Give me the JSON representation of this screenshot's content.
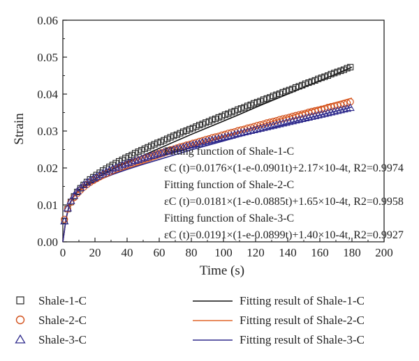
{
  "chart_data": {
    "type": "scatter",
    "xlabel": "Time (s)",
    "ylabel": "Strain",
    "xlim": [
      0,
      200
    ],
    "ylim": [
      0,
      0.06
    ],
    "xticks": [
      0,
      20,
      40,
      60,
      80,
      100,
      120,
      140,
      160,
      180,
      200
    ],
    "yticks": [
      0.0,
      0.01,
      0.02,
      0.03,
      0.04,
      0.05,
      0.06
    ],
    "xtick_labels": [
      "0",
      "20",
      "40",
      "60",
      "80",
      "100",
      "120",
      "140",
      "160",
      "180",
      "200"
    ],
    "ytick_labels": [
      "0.00",
      "0.01",
      "0.02",
      "0.03",
      "0.04",
      "0.05",
      "0.06"
    ],
    "grid": false,
    "legend_position": "bottom",
    "series": [
      {
        "name": "Shale-1-C",
        "marker": "square",
        "color": "#222222",
        "x": [
          1,
          3,
          5,
          7,
          9,
          11,
          13,
          15,
          17,
          19,
          21,
          23,
          25,
          27,
          29,
          31,
          33,
          35,
          37,
          39,
          41,
          43,
          45,
          47,
          49,
          51,
          53,
          55,
          57,
          59,
          61,
          63,
          65,
          67,
          69,
          71,
          73,
          75,
          77,
          79,
          81,
          83,
          85,
          87,
          89,
          91,
          93,
          95,
          97,
          99,
          101,
          103,
          105,
          107,
          109,
          111,
          113,
          115,
          117,
          119,
          121,
          123,
          125,
          127,
          129,
          131,
          133,
          135,
          137,
          139,
          141,
          143,
          145,
          147,
          149,
          151,
          153,
          155,
          157,
          159,
          161,
          163,
          165,
          167,
          169,
          171,
          173,
          175,
          177,
          179
        ],
        "values": [
          0.0056,
          0.0089,
          0.0108,
          0.0123,
          0.0135,
          0.0145,
          0.0154,
          0.0162,
          0.0169,
          0.0175,
          0.0181,
          0.0187,
          0.0193,
          0.0198,
          0.0203,
          0.0208,
          0.0213,
          0.0218,
          0.0222,
          0.0227,
          0.0231,
          0.0235,
          0.024,
          0.0244,
          0.0248,
          0.0252,
          0.0256,
          0.026,
          0.0264,
          0.0268,
          0.0271,
          0.0275,
          0.0279,
          0.0283,
          0.0287,
          0.029,
          0.0294,
          0.0298,
          0.0301,
          0.0305,
          0.0308,
          0.0312,
          0.0316,
          0.0319,
          0.0323,
          0.0326,
          0.033,
          0.0333,
          0.0337,
          0.034,
          0.0344,
          0.0347,
          0.0351,
          0.0354,
          0.0358,
          0.0361,
          0.0364,
          0.0368,
          0.0371,
          0.0375,
          0.0378,
          0.0381,
          0.0385,
          0.0388,
          0.0391,
          0.0395,
          0.0398,
          0.0401,
          0.0405,
          0.0408,
          0.0411,
          0.0414,
          0.0418,
          0.0421,
          0.0424,
          0.0428,
          0.0431,
          0.0434,
          0.0437,
          0.0441,
          0.0444,
          0.0447,
          0.045,
          0.0454,
          0.0457,
          0.046,
          0.0463,
          0.0466,
          0.047,
          0.0473
        ]
      },
      {
        "name": "Shale-2-C",
        "marker": "circle",
        "color": "#d2511c",
        "x": [
          1,
          3,
          5,
          7,
          9,
          11,
          13,
          15,
          17,
          19,
          21,
          23,
          25,
          27,
          29,
          31,
          33,
          35,
          37,
          39,
          41,
          43,
          45,
          47,
          49,
          51,
          53,
          55,
          57,
          59,
          61,
          63,
          65,
          67,
          69,
          71,
          73,
          75,
          77,
          79,
          81,
          83,
          85,
          87,
          89,
          91,
          93,
          95,
          97,
          99,
          101,
          103,
          105,
          107,
          109,
          111,
          113,
          115,
          117,
          119,
          121,
          123,
          125,
          127,
          129,
          131,
          133,
          135,
          137,
          139,
          141,
          143,
          145,
          147,
          149,
          151,
          153,
          155,
          157,
          159,
          161,
          163,
          165,
          167,
          169,
          171,
          173,
          175,
          177,
          179
        ],
        "values": [
          0.0061,
          0.0089,
          0.0107,
          0.012,
          0.0131,
          0.014,
          0.0148,
          0.0155,
          0.0161,
          0.0166,
          0.0171,
          0.0176,
          0.0181,
          0.0185,
          0.0189,
          0.0193,
          0.0197,
          0.02,
          0.0204,
          0.0207,
          0.0211,
          0.0214,
          0.0217,
          0.022,
          0.0223,
          0.0226,
          0.0229,
          0.0232,
          0.0235,
          0.0238,
          0.0241,
          0.0243,
          0.0246,
          0.0249,
          0.0251,
          0.0254,
          0.0257,
          0.0259,
          0.0262,
          0.0264,
          0.0267,
          0.0269,
          0.0272,
          0.0274,
          0.0277,
          0.0279,
          0.0282,
          0.0284,
          0.0286,
          0.0289,
          0.0291,
          0.0294,
          0.0296,
          0.0298,
          0.0301,
          0.0303,
          0.0305,
          0.0308,
          0.031,
          0.0312,
          0.0315,
          0.0317,
          0.0319,
          0.0322,
          0.0324,
          0.0326,
          0.0328,
          0.0331,
          0.0333,
          0.0335,
          0.0337,
          0.034,
          0.0342,
          0.0344,
          0.0346,
          0.0348,
          0.0351,
          0.0353,
          0.0355,
          0.0357,
          0.0359,
          0.0361,
          0.0364,
          0.0366,
          0.0368,
          0.037,
          0.0372,
          0.0374,
          0.0376,
          0.0379
        ]
      },
      {
        "name": "Shale-3-C",
        "marker": "triangle",
        "color": "#2e2a8c",
        "x": [
          1,
          3,
          5,
          7,
          9,
          11,
          13,
          15,
          17,
          19,
          21,
          23,
          25,
          27,
          29,
          31,
          33,
          35,
          37,
          39,
          41,
          43,
          45,
          47,
          49,
          51,
          53,
          55,
          57,
          59,
          61,
          63,
          65,
          67,
          69,
          71,
          73,
          75,
          77,
          79,
          81,
          83,
          85,
          87,
          89,
          91,
          93,
          95,
          97,
          99,
          101,
          103,
          105,
          107,
          109,
          111,
          113,
          115,
          117,
          119,
          121,
          123,
          125,
          127,
          129,
          131,
          133,
          135,
          137,
          139,
          141,
          143,
          145,
          147,
          149,
          151,
          153,
          155,
          157,
          159,
          161,
          163,
          165,
          167,
          169,
          171,
          173,
          175,
          177,
          179
        ],
        "values": [
          0.0056,
          0.0091,
          0.0111,
          0.0125,
          0.0137,
          0.0146,
          0.0154,
          0.0161,
          0.0167,
          0.0172,
          0.0177,
          0.0182,
          0.0186,
          0.019,
          0.0194,
          0.0198,
          0.0201,
          0.0204,
          0.0208,
          0.0211,
          0.0214,
          0.0217,
          0.022,
          0.0222,
          0.0225,
          0.0228,
          0.023,
          0.0233,
          0.0235,
          0.0238,
          0.024,
          0.0243,
          0.0245,
          0.0247,
          0.025,
          0.0252,
          0.0254,
          0.0256,
          0.0259,
          0.0261,
          0.0263,
          0.0265,
          0.0267,
          0.027,
          0.0272,
          0.0274,
          0.0276,
          0.0278,
          0.028,
          0.0282,
          0.0284,
          0.0286,
          0.0288,
          0.0291,
          0.0293,
          0.0295,
          0.0297,
          0.0299,
          0.0301,
          0.0303,
          0.0305,
          0.0307,
          0.0309,
          0.0311,
          0.0313,
          0.0315,
          0.0317,
          0.0319,
          0.0321,
          0.0323,
          0.0325,
          0.0327,
          0.0329,
          0.0331,
          0.0333,
          0.0335,
          0.0337,
          0.0339,
          0.0341,
          0.0343,
          0.0345,
          0.0347,
          0.0349,
          0.0351,
          0.0353,
          0.0355,
          0.0357,
          0.0359,
          0.0361,
          0.0363
        ]
      },
      {
        "name": "Fitting result of Shale-1-C",
        "line": true,
        "color": "#111111",
        "x": [
          0,
          2,
          4,
          6,
          8,
          10,
          14,
          18,
          24,
          30,
          40,
          50,
          60,
          70,
          80,
          90,
          100,
          110,
          120,
          130,
          140,
          150,
          160,
          170,
          180
        ],
        "values": [
          0.0,
          0.0062,
          0.0098,
          0.0118,
          0.0131,
          0.014,
          0.0154,
          0.0165,
          0.018,
          0.0194,
          0.0215,
          0.0234,
          0.0253,
          0.0272,
          0.0291,
          0.0309,
          0.0327,
          0.0345,
          0.0364,
          0.0382,
          0.04,
          0.0418,
          0.0436,
          0.0454,
          0.0473
        ]
      },
      {
        "name": "Fitting result of Shale-2-C",
        "line": true,
        "color": "#e0652a",
        "x": [
          0,
          2,
          4,
          6,
          8,
          10,
          14,
          18,
          24,
          30,
          40,
          50,
          60,
          70,
          80,
          90,
          100,
          110,
          120,
          130,
          140,
          150,
          160,
          170,
          180
        ],
        "values": [
          0.0,
          0.0063,
          0.0098,
          0.0117,
          0.0129,
          0.0137,
          0.0149,
          0.0158,
          0.017,
          0.0181,
          0.0198,
          0.0213,
          0.0228,
          0.0243,
          0.0257,
          0.0271,
          0.0285,
          0.0298,
          0.0312,
          0.0325,
          0.0338,
          0.0351,
          0.0364,
          0.0377,
          0.0389
        ]
      },
      {
        "name": "Fitting result of Shale-3-C",
        "line": true,
        "color": "#2e2a8c",
        "x": [
          0,
          2,
          4,
          6,
          8,
          10,
          14,
          18,
          24,
          30,
          40,
          50,
          60,
          70,
          80,
          90,
          100,
          110,
          120,
          130,
          140,
          150,
          160,
          170,
          180
        ],
        "values": [
          0.0,
          0.0064,
          0.0101,
          0.012,
          0.0133,
          0.0141,
          0.0152,
          0.016,
          0.0171,
          0.0181,
          0.0196,
          0.021,
          0.0223,
          0.0236,
          0.0249,
          0.0261,
          0.0273,
          0.0285,
          0.0297,
          0.0309,
          0.032,
          0.0332,
          0.0343,
          0.0354,
          0.0365
        ]
      }
    ],
    "annotations": [
      "Fitting function of Shale-1-C",
      "εC (t)=0.0176×(1-e-0.0901t)+2.17×10-4t, R2=0.9974",
      "Fitting function of Shale-2-C",
      "εC (t)=0.0181×(1-e-0.0885t)+1.65×10-4t, R2=0.9958",
      "Fitting function of Shale-3-C",
      "εC (t)=0.0191×(1-e-0.0899t)+1.40×10-4t, R2=0.9927"
    ]
  }
}
